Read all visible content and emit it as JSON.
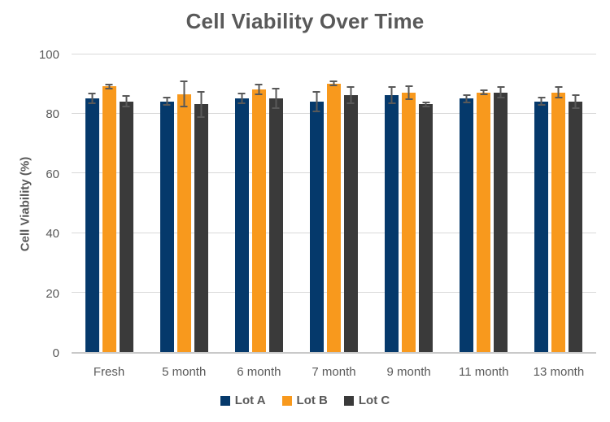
{
  "chart_data": {
    "type": "bar",
    "title": "Cell Viability Over Time",
    "xlabel": "",
    "ylabel": "Cell Viability (%)",
    "ylim": [
      0,
      100
    ],
    "yticks": [
      0,
      20,
      40,
      60,
      80,
      100
    ],
    "grid": true,
    "legend_position": "bottom",
    "categories": [
      "Fresh",
      "5 month",
      "6 month",
      "7 month",
      "9 month",
      "11 month",
      "13 month"
    ],
    "series": [
      {
        "name": "Lot A",
        "color": "#05396b",
        "values": [
          85,
          84,
          85,
          84,
          86,
          85,
          84
        ],
        "errors": [
          2,
          1.5,
          2,
          3.5,
          3,
          1.5,
          1.5
        ]
      },
      {
        "name": "Lot B",
        "color": "#f8991d",
        "values": [
          89,
          86.5,
          88,
          90,
          87,
          87,
          87
        ],
        "errors": [
          1,
          4.5,
          2,
          1,
          2.5,
          1,
          2
        ]
      },
      {
        "name": "Lot C",
        "color": "#3a3a3a",
        "values": [
          84,
          83,
          85,
          86,
          83,
          87,
          84
        ],
        "errors": [
          2,
          4.5,
          3.5,
          3,
          1,
          2,
          2.5
        ]
      }
    ],
    "error_bar_color": "#595959"
  },
  "style": {
    "text_color": "#595959",
    "gridline_color": "#d9d9d9",
    "axis_line_color": "#c9c9c9",
    "background": "#ffffff"
  }
}
